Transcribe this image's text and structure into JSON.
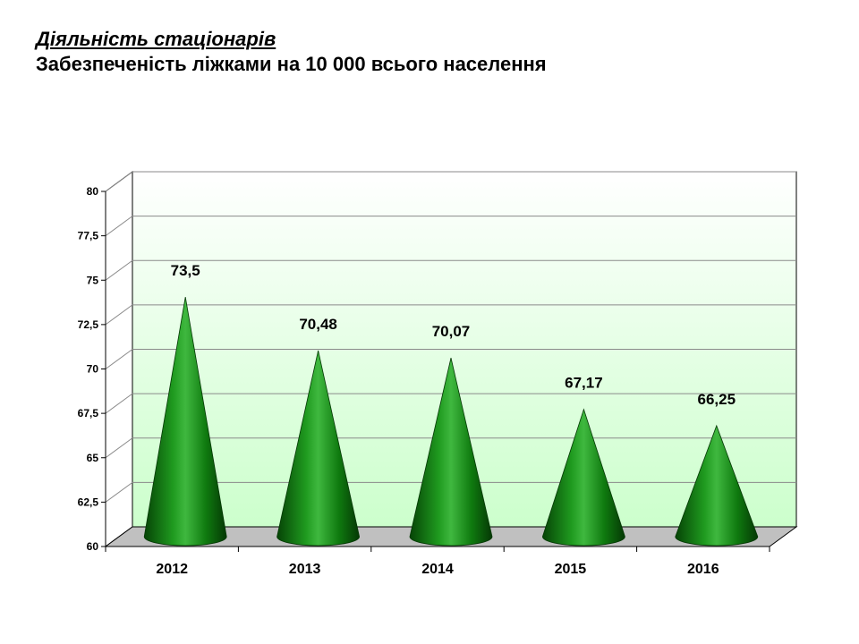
{
  "header": {
    "title": "Діяльність  стаціонарів",
    "subtitle": "Забезпеченість ліжками на 10 000 всього населення"
  },
  "chart_data": {
    "type": "bar",
    "bar_shape": "cone",
    "title": "Забезпеченість ліжками на 10 000 всього населення",
    "categories": [
      "2012",
      "2013",
      "2014",
      "2015",
      "2016"
    ],
    "values": [
      73.5,
      70.48,
      70.07,
      67.17,
      66.25
    ],
    "value_labels": [
      "73,5",
      "70,48",
      "70,07",
      "67,17",
      "66,25"
    ],
    "ylim": [
      60,
      80
    ],
    "yticks": [
      60,
      62.5,
      65,
      67.5,
      70,
      72.5,
      75,
      77.5,
      80
    ],
    "ytick_labels": [
      "60",
      "62,5",
      "65",
      "67,5",
      "70",
      "72,5",
      "75",
      "77,5",
      "80"
    ],
    "grid": true,
    "xlabel": "",
    "ylabel": "",
    "colors": {
      "cone": "#0a7a0a",
      "cone_dark": "#064406",
      "cone_light": "#3fb83f",
      "floor": "#c0c0c0",
      "backwall_top": "#ffffff",
      "backwall_bottom": "#ccffcc"
    }
  }
}
